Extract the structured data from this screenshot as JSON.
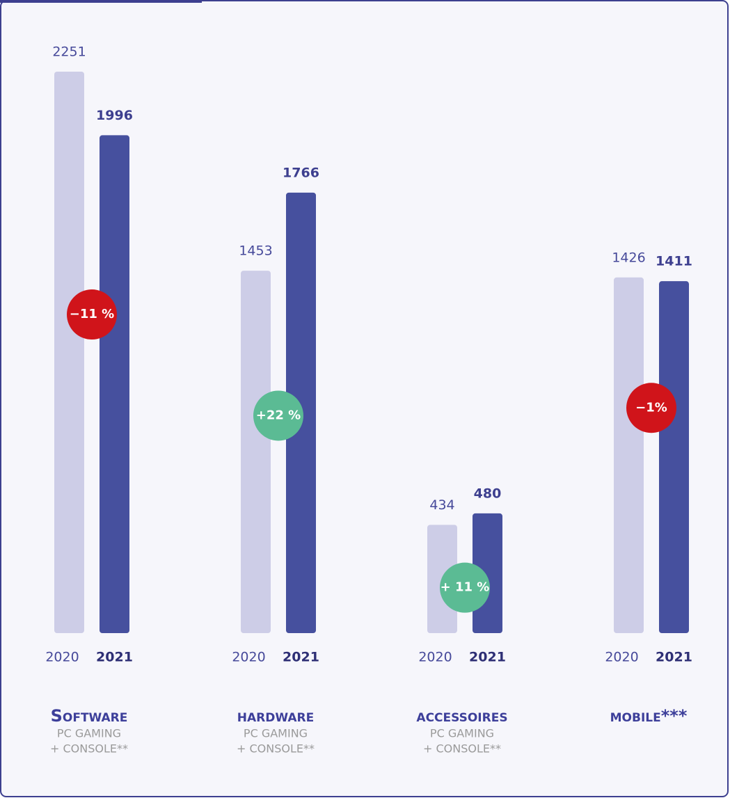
{
  "chart_data": {
    "type": "bar",
    "categories": [
      "Software",
      "hardware",
      "accessoires",
      "mobile***"
    ],
    "subtitles": [
      [
        "PC GAMING",
        "+ CONSOLE**"
      ],
      [
        "PC GAMING",
        "+ CONSOLE**"
      ],
      [
        "PC GAMING",
        "+ CONSOLE**"
      ],
      []
    ],
    "series": [
      {
        "name": "2020",
        "color": "#cdcde7",
        "values": [
          2251,
          1453,
          434,
          1426
        ]
      },
      {
        "name": "2021",
        "color": "#46509e",
        "values": [
          1996,
          1766,
          480,
          1411
        ]
      }
    ],
    "annotations": [
      {
        "text": "−11 %",
        "color": "#d0141a"
      },
      {
        "text": "+22 %",
        "color": "#5bbb94"
      },
      {
        "text": "+ 11 %",
        "color": "#5bbb94"
      },
      {
        "text": "−1%",
        "color": "#d0141a"
      }
    ]
  }
}
